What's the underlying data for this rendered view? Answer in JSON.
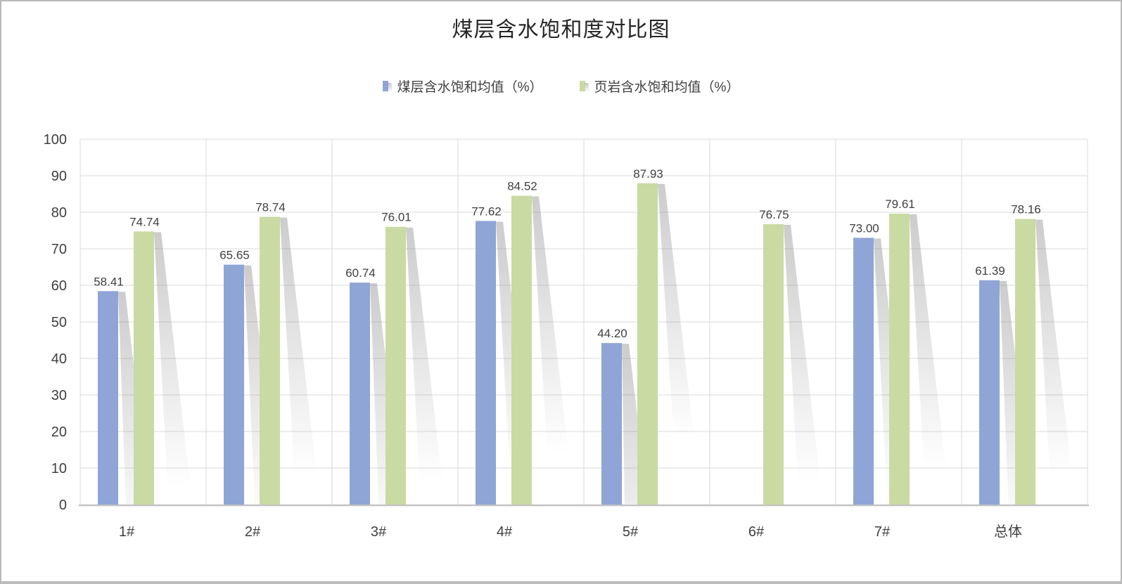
{
  "chart_data": {
    "type": "bar",
    "title": "煤层含水饱和度对比图",
    "categories": [
      "1#",
      "2#",
      "3#",
      "4#",
      "5#",
      "6#",
      "7#",
      "总体"
    ],
    "series": [
      {
        "name": "煤层含水饱和均值（%）",
        "color": "#8EA5D6",
        "values": [
          58.41,
          65.65,
          60.74,
          77.62,
          44.2,
          null,
          73.0,
          61.39
        ]
      },
      {
        "name": "页岩含水饱和均值（%）",
        "color": "#C9DAA3",
        "values": [
          74.74,
          78.74,
          76.01,
          84.52,
          87.93,
          76.75,
          79.61,
          78.16
        ]
      }
    ],
    "xlabel": "",
    "ylabel": "",
    "ylim": [
      0,
      100
    ],
    "yticks": [
      0,
      10,
      20,
      30,
      40,
      50,
      60,
      70,
      80,
      90,
      100
    ],
    "grid": true,
    "legend_position": "top",
    "value_label_decimals": 2
  },
  "colors": {
    "gridline": "#D9D9D9",
    "axis_line": "#C3C3C3",
    "text": "#404040",
    "title_text": "#262626",
    "bar_shadow": "#808080"
  }
}
